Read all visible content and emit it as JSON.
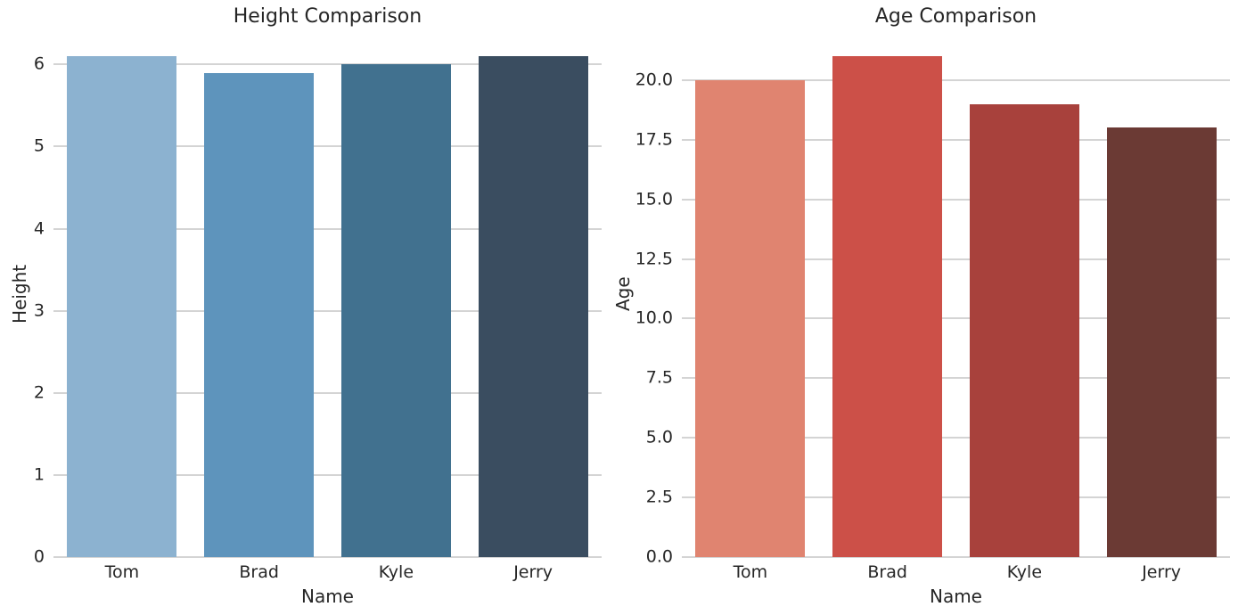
{
  "figure": {
    "background": "#ffffff",
    "grid_color": "#d4d4d4",
    "text_color": "#262626"
  },
  "chart_data": [
    {
      "type": "bar",
      "title": "Height Comparison",
      "xlabel": "Name",
      "ylabel": "Height",
      "categories": [
        "Tom",
        "Brad",
        "Kyle",
        "Jerry"
      ],
      "values": [
        6.1,
        5.9,
        6.0,
        6.1
      ],
      "bar_colors": [
        "#8cb2d0",
        "#5e94bc",
        "#41718f",
        "#3a4d60"
      ],
      "ylim": [
        0,
        6.405
      ],
      "yticks": [
        0,
        1,
        2,
        3,
        4,
        5,
        6
      ],
      "ytick_labels": [
        "0",
        "1",
        "2",
        "3",
        "4",
        "5",
        "6"
      ],
      "grid": true,
      "legend_position": "none"
    },
    {
      "type": "bar",
      "title": "Age Comparison",
      "xlabel": "Name",
      "ylabel": "Age",
      "categories": [
        "Tom",
        "Brad",
        "Kyle",
        "Jerry"
      ],
      "values": [
        20,
        21,
        19,
        18
      ],
      "bar_colors": [
        "#e08470",
        "#cc5048",
        "#a8413c",
        "#6b3a34"
      ],
      "ylim": [
        0,
        22.05
      ],
      "yticks": [
        0,
        2.5,
        5,
        7.5,
        10,
        12.5,
        15,
        17.5,
        20
      ],
      "ytick_labels": [
        "0.0",
        "2.5",
        "5.0",
        "7.5",
        "10.0",
        "12.5",
        "15.0",
        "17.5",
        "20.0"
      ],
      "grid": true,
      "legend_position": "none"
    }
  ]
}
